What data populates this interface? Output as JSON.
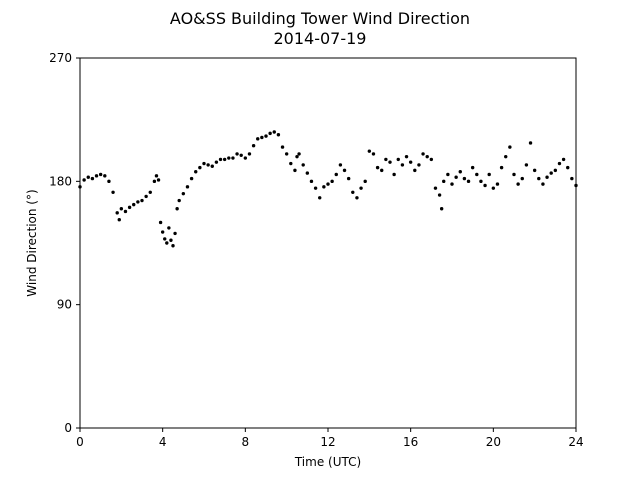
{
  "chart_data": {
    "type": "scatter",
    "title": "AO&SS Building Tower Wind Direction",
    "subtitle": "2014-07-19",
    "xlabel": "Time (UTC)",
    "ylabel": "Wind Direction (°)",
    "xlim": [
      0,
      24
    ],
    "ylim": [
      0,
      270
    ],
    "xticks": [
      0,
      4,
      8,
      12,
      16,
      20,
      24
    ],
    "yticks": [
      0,
      90,
      180,
      270
    ],
    "xtick_labels": [
      "0",
      "4",
      "8",
      "12",
      "16",
      "20",
      "24"
    ],
    "ytick_labels": [
      "0",
      "90",
      "180",
      "270"
    ],
    "grid": false,
    "marker_color": "#000000",
    "series": [
      {
        "points": [
          [
            0.0,
            176
          ],
          [
            0.2,
            181
          ],
          [
            0.4,
            183
          ],
          [
            0.6,
            182
          ],
          [
            0.8,
            184
          ],
          [
            1.0,
            185
          ],
          [
            1.2,
            184
          ],
          [
            1.4,
            180
          ],
          [
            1.6,
            172
          ],
          [
            1.8,
            157
          ],
          [
            1.9,
            152
          ],
          [
            2.0,
            160
          ],
          [
            2.2,
            158
          ],
          [
            2.4,
            161
          ],
          [
            2.6,
            163
          ],
          [
            2.8,
            165
          ],
          [
            3.0,
            166
          ],
          [
            3.2,
            169
          ],
          [
            3.4,
            172
          ],
          [
            3.6,
            180
          ],
          [
            3.7,
            184
          ],
          [
            3.8,
            181
          ],
          [
            3.9,
            150
          ],
          [
            4.0,
            143
          ],
          [
            4.1,
            138
          ],
          [
            4.2,
            135
          ],
          [
            4.3,
            146
          ],
          [
            4.4,
            137
          ],
          [
            4.5,
            133
          ],
          [
            4.6,
            142
          ],
          [
            4.7,
            160
          ],
          [
            4.8,
            166
          ],
          [
            5.0,
            171
          ],
          [
            5.2,
            176
          ],
          [
            5.4,
            182
          ],
          [
            5.6,
            187
          ],
          [
            5.8,
            190
          ],
          [
            6.0,
            193
          ],
          [
            6.2,
            192
          ],
          [
            6.4,
            191
          ],
          [
            6.6,
            194
          ],
          [
            6.8,
            196
          ],
          [
            7.0,
            196
          ],
          [
            7.2,
            197
          ],
          [
            7.4,
            197
          ],
          [
            7.6,
            200
          ],
          [
            7.8,
            199
          ],
          [
            8.0,
            197
          ],
          [
            8.2,
            200
          ],
          [
            8.4,
            206
          ],
          [
            8.6,
            211
          ],
          [
            8.8,
            212
          ],
          [
            9.0,
            213
          ],
          [
            9.2,
            215
          ],
          [
            9.4,
            216
          ],
          [
            9.6,
            214
          ],
          [
            9.8,
            205
          ],
          [
            10.0,
            200
          ],
          [
            10.2,
            193
          ],
          [
            10.4,
            188
          ],
          [
            10.5,
            198
          ],
          [
            10.6,
            200
          ],
          [
            10.8,
            192
          ],
          [
            11.0,
            186
          ],
          [
            11.2,
            180
          ],
          [
            11.4,
            175
          ],
          [
            11.6,
            168
          ],
          [
            11.8,
            176
          ],
          [
            12.0,
            178
          ],
          [
            12.2,
            180
          ],
          [
            12.4,
            185
          ],
          [
            12.6,
            192
          ],
          [
            12.8,
            188
          ],
          [
            13.0,
            182
          ],
          [
            13.2,
            172
          ],
          [
            13.4,
            168
          ],
          [
            13.6,
            175
          ],
          [
            13.8,
            180
          ],
          [
            14.0,
            202
          ],
          [
            14.2,
            200
          ],
          [
            14.4,
            190
          ],
          [
            14.6,
            188
          ],
          [
            14.8,
            196
          ],
          [
            15.0,
            194
          ],
          [
            15.2,
            185
          ],
          [
            15.4,
            196
          ],
          [
            15.6,
            192
          ],
          [
            15.8,
            198
          ],
          [
            16.0,
            194
          ],
          [
            16.2,
            188
          ],
          [
            16.4,
            192
          ],
          [
            16.6,
            200
          ],
          [
            16.8,
            198
          ],
          [
            17.0,
            196
          ],
          [
            17.2,
            175
          ],
          [
            17.4,
            170
          ],
          [
            17.5,
            160
          ],
          [
            17.6,
            180
          ],
          [
            17.8,
            185
          ],
          [
            18.0,
            178
          ],
          [
            18.2,
            183
          ],
          [
            18.4,
            187
          ],
          [
            18.6,
            182
          ],
          [
            18.8,
            180
          ],
          [
            19.0,
            190
          ],
          [
            19.2,
            185
          ],
          [
            19.4,
            180
          ],
          [
            19.6,
            177
          ],
          [
            19.8,
            185
          ],
          [
            20.0,
            175
          ],
          [
            20.2,
            178
          ],
          [
            20.4,
            190
          ],
          [
            20.6,
            198
          ],
          [
            20.8,
            205
          ],
          [
            21.0,
            185
          ],
          [
            21.2,
            178
          ],
          [
            21.4,
            182
          ],
          [
            21.6,
            192
          ],
          [
            21.8,
            208
          ],
          [
            22.0,
            188
          ],
          [
            22.2,
            182
          ],
          [
            22.4,
            178
          ],
          [
            22.6,
            183
          ],
          [
            22.8,
            186
          ],
          [
            23.0,
            188
          ],
          [
            23.2,
            193
          ],
          [
            23.4,
            196
          ],
          [
            23.6,
            190
          ],
          [
            23.8,
            182
          ],
          [
            24.0,
            177
          ]
        ]
      }
    ]
  }
}
